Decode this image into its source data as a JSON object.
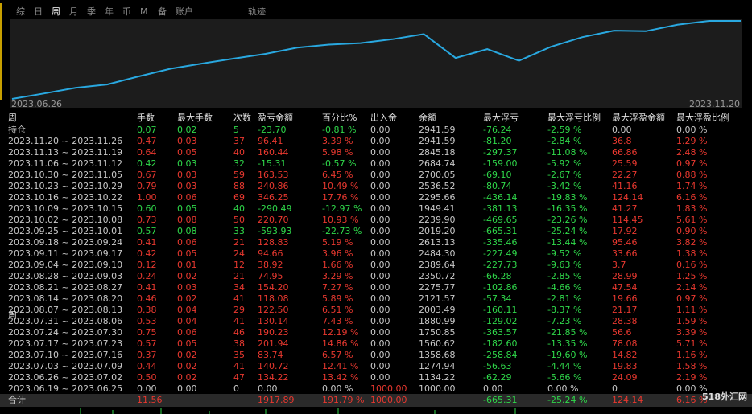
{
  "tabs": [
    "综",
    "日",
    "周",
    "月",
    "季",
    "年",
    "币",
    "M",
    "备",
    "账户"
  ],
  "active_tab": 2,
  "track_label": "轨迹",
  "chart": {
    "type": "line",
    "x_start_label": "2023.06.26",
    "x_end_label": "2023.11.20",
    "color": "#29a8e0",
    "values": [
      1000,
      1134.22,
      1274.94,
      1358.68,
      1560.62,
      1750.85,
      1880.99,
      2003.49,
      2121.57,
      2275.77,
      2350.72,
      2389.64,
      2484.3,
      2613.13,
      2019.2,
      2239.9,
      1949.41,
      2295.66,
      2536.52,
      2700.05,
      2684.74,
      2845.18,
      2941.59,
      2941.59
    ]
  },
  "colors": {
    "positive": "#e8382f",
    "negative": "#2fd84a",
    "neutral": "#c8c8c8"
  },
  "table": {
    "headers": [
      "周",
      "手数",
      "最大手数",
      "次数",
      "盈亏金额",
      "百分比%",
      "出入金",
      "余额",
      "最大浮亏",
      "最大浮亏比例",
      "最大浮盈金额",
      "最大浮盈比例"
    ],
    "rows": [
      [
        "持仓",
        "0.07",
        "0.02",
        "5",
        "-23.70",
        "-0.81 %",
        "0.00",
        "2941.59",
        "-76.24",
        "-2.59 %",
        "0.00",
        "0.00 %"
      ],
      [
        "2023.11.20 ~ 2023.11.26",
        "0.47",
        "0.03",
        "37",
        "96.41",
        "3.39 %",
        "0.00",
        "2941.59",
        "-81.20",
        "-2.84 %",
        "36.8",
        "1.29 %"
      ],
      [
        "2023.11.13 ~ 2023.11.19",
        "0.64",
        "0.05",
        "40",
        "160.44",
        "5.98 %",
        "0.00",
        "2845.18",
        "-297.37",
        "-11.08 %",
        "66.86",
        "2.48 %"
      ],
      [
        "2023.11.06 ~ 2023.11.12",
        "0.42",
        "0.03",
        "32",
        "-15.31",
        "-0.57 %",
        "0.00",
        "2684.74",
        "-159.00",
        "-5.92 %",
        "25.59",
        "0.97 %"
      ],
      [
        "2023.10.30 ~ 2023.11.05",
        "0.67",
        "0.03",
        "59",
        "163.53",
        "6.45 %",
        "0.00",
        "2700.05",
        "-69.10",
        "-2.67 %",
        "22.27",
        "0.88 %"
      ],
      [
        "2023.10.23 ~ 2023.10.29",
        "0.79",
        "0.03",
        "88",
        "240.86",
        "10.49 %",
        "0.00",
        "2536.52",
        "-80.74",
        "-3.42 %",
        "41.16",
        "1.74 %"
      ],
      [
        "2023.10.16 ~ 2023.10.22",
        "1.00",
        "0.06",
        "69",
        "346.25",
        "17.76 %",
        "0.00",
        "2295.66",
        "-436.14",
        "-19.83 %",
        "124.14",
        "6.16 %"
      ],
      [
        "2023.10.09 ~ 2023.10.15",
        "0.60",
        "0.05",
        "40",
        "-290.49",
        "-12.97 %",
        "0.00",
        "1949.41",
        "-381.13",
        "-16.35 %",
        "41.27",
        "1.83 %"
      ],
      [
        "2023.10.02 ~ 2023.10.08",
        "0.73",
        "0.08",
        "50",
        "220.70",
        "10.93 %",
        "0.00",
        "2239.90",
        "-469.65",
        "-23.26 %",
        "114.45",
        "5.61 %"
      ],
      [
        "2023.09.25 ~ 2023.10.01",
        "0.57",
        "0.08",
        "33",
        "-593.93",
        "-22.73 %",
        "0.00",
        "2019.20",
        "-665.31",
        "-25.24 %",
        "17.92",
        "0.90 %"
      ],
      [
        "2023.09.18 ~ 2023.09.24",
        "0.41",
        "0.06",
        "21",
        "128.83",
        "5.19 %",
        "0.00",
        "2613.13",
        "-335.46",
        "-13.44 %",
        "95.46",
        "3.82 %"
      ],
      [
        "2023.09.11 ~ 2023.09.17",
        "0.42",
        "0.05",
        "24",
        "94.66",
        "3.96 %",
        "0.00",
        "2484.30",
        "-227.49",
        "-9.52 %",
        "33.66",
        "1.38 %"
      ],
      [
        "2023.09.04 ~ 2023.09.10",
        "0.12",
        "0.01",
        "12",
        "38.92",
        "1.66 %",
        "0.00",
        "2389.64",
        "-227.73",
        "-9.63 %",
        "3.7",
        "0.16 %"
      ],
      [
        "2023.08.28 ~ 2023.09.03",
        "0.24",
        "0.02",
        "21",
        "74.95",
        "3.29 %",
        "0.00",
        "2350.72",
        "-66.28",
        "-2.85 %",
        "28.99",
        "1.25 %"
      ],
      [
        "2023.08.21 ~ 2023.08.27",
        "0.41",
        "0.03",
        "34",
        "154.20",
        "7.27 %",
        "0.00",
        "2275.77",
        "-102.86",
        "-4.66 %",
        "47.54",
        "2.14 %"
      ],
      [
        "2023.08.14 ~ 2023.08.20",
        "0.46",
        "0.02",
        "41",
        "118.08",
        "5.89 %",
        "0.00",
        "2121.57",
        "-57.34",
        "-2.81 %",
        "19.66",
        "0.97 %"
      ],
      [
        "2023.08.07 ~ 2023.08.13",
        "0.38",
        "0.04",
        "29",
        "122.50",
        "6.51 %",
        "0.00",
        "2003.49",
        "-160.11",
        "-8.37 %",
        "21.17",
        "1.11 %"
      ],
      [
        "2023.07.31 ~ 2023.08.06",
        "0.53",
        "0.04",
        "41",
        "130.14",
        "7.43 %",
        "0.00",
        "1880.99",
        "-129.02",
        "-7.23 %",
        "28.38",
        "1.59 %"
      ],
      [
        "2023.07.24 ~ 2023.07.30",
        "0.75",
        "0.06",
        "46",
        "190.23",
        "12.19 %",
        "0.00",
        "1750.85",
        "-363.57",
        "-21.85 %",
        "56.6",
        "3.39 %"
      ],
      [
        "2023.07.17 ~ 2023.07.23",
        "0.57",
        "0.05",
        "38",
        "201.94",
        "14.86 %",
        "0.00",
        "1560.62",
        "-182.60",
        "-13.35 %",
        "78.08",
        "5.71 %"
      ],
      [
        "2023.07.10 ~ 2023.07.16",
        "0.37",
        "0.02",
        "35",
        "83.74",
        "6.57 %",
        "0.00",
        "1358.68",
        "-258.84",
        "-19.60 %",
        "14.82",
        "1.16 %"
      ],
      [
        "2023.07.03 ~ 2023.07.09",
        "0.44",
        "0.02",
        "41",
        "140.72",
        "12.41 %",
        "0.00",
        "1274.94",
        "-56.63",
        "-4.44 %",
        "19.83",
        "1.58 %"
      ],
      [
        "2023.06.26 ~ 2023.07.02",
        "0.50",
        "0.02",
        "47",
        "134.22",
        "13.42 %",
        "0.00",
        "1134.22",
        "-62.29",
        "-5.66 %",
        "24.09",
        "2.19 %"
      ],
      [
        "2023.06.19 ~ 2023.06.25",
        "0.00",
        "0.00",
        "0",
        "0.00",
        "0.00 %",
        "1000.00",
        "1000.00",
        "0.00",
        "0.00 %",
        "0",
        "0.00 %"
      ]
    ],
    "overlay_label": "周",
    "overlay_row": 17,
    "total": [
      "合计",
      "11.56",
      null,
      null,
      "1917.89",
      "191.79 %",
      "1000.00",
      null,
      "-665.31",
      "-25.24 %",
      "124.14",
      "6.16 %"
    ]
  },
  "watermark": "518外汇网"
}
